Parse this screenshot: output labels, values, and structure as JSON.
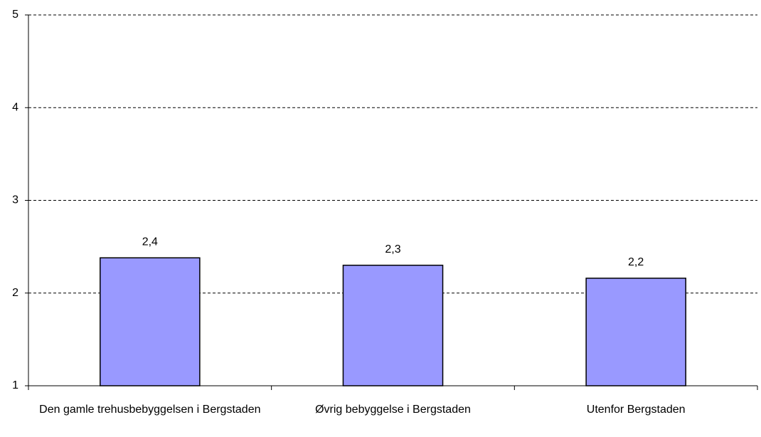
{
  "chart_data": {
    "type": "bar",
    "categories": [
      "Den gamle trehusbebyggelsen i Bergstaden",
      "Øvrig bebyggelse i Bergstaden",
      "Utenfor Bergstaden"
    ],
    "values": [
      2.38,
      2.3,
      2.16
    ],
    "value_labels": [
      "2,4",
      "2,3",
      "2,2"
    ],
    "color": "#9999ff",
    "ylim": [
      1,
      5
    ],
    "yticks": [
      1,
      2,
      3,
      4,
      5
    ],
    "grid": true
  }
}
